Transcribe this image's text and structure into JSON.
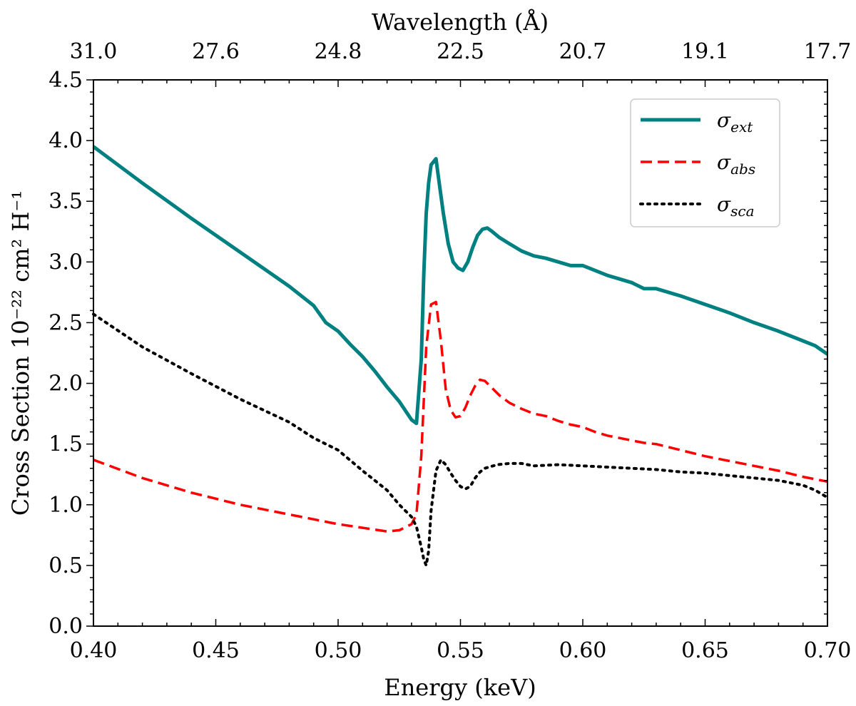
{
  "chart_data": {
    "type": "line",
    "title": "",
    "xlabel": "Energy (keV)",
    "ylabel": "Cross Section 10⁻²² cm² H⁻¹",
    "top_xlabel": "Wavelength (Å)",
    "xlim": [
      0.4,
      0.7
    ],
    "ylim": [
      0.0,
      4.5
    ],
    "xticks": [
      0.4,
      0.45,
      0.5,
      0.55,
      0.6,
      0.65,
      0.7
    ],
    "xtick_labels": [
      "0.40",
      "0.45",
      "0.50",
      "0.55",
      "0.60",
      "0.65",
      "0.70"
    ],
    "yticks": [
      0.0,
      0.5,
      1.0,
      1.5,
      2.0,
      2.5,
      3.0,
      3.5,
      4.0,
      4.5
    ],
    "ytick_labels": [
      "0.0",
      "0.5",
      "1.0",
      "1.5",
      "2.0",
      "2.5",
      "3.0",
      "3.5",
      "4.0",
      "4.5"
    ],
    "top_ticks_energy": [
      0.4,
      0.45,
      0.5,
      0.55,
      0.6,
      0.65,
      0.7
    ],
    "top_tick_labels": [
      "31.0",
      "27.6",
      "24.8",
      "22.5",
      "20.7",
      "19.1",
      "17.7"
    ],
    "legend_position": "top-right",
    "series": [
      {
        "name": "σext",
        "symbol": "σ",
        "subscript": "ext",
        "color": "#008080",
        "style": "solid",
        "x": [
          0.4,
          0.42,
          0.44,
          0.46,
          0.48,
          0.49,
          0.495,
          0.5,
          0.505,
          0.51,
          0.515,
          0.52,
          0.525,
          0.53,
          0.532,
          0.534,
          0.535,
          0.536,
          0.537,
          0.538,
          0.54,
          0.541,
          0.543,
          0.545,
          0.547,
          0.549,
          0.551,
          0.553,
          0.555,
          0.557,
          0.559,
          0.561,
          0.563,
          0.566,
          0.57,
          0.575,
          0.58,
          0.585,
          0.59,
          0.595,
          0.6,
          0.605,
          0.61,
          0.615,
          0.62,
          0.625,
          0.63,
          0.64,
          0.65,
          0.66,
          0.67,
          0.68,
          0.69,
          0.695,
          0.7
        ],
        "values": [
          3.95,
          3.65,
          3.36,
          3.08,
          2.8,
          2.64,
          2.5,
          2.43,
          2.32,
          2.22,
          2.1,
          1.97,
          1.85,
          1.7,
          1.67,
          2.2,
          2.9,
          3.4,
          3.65,
          3.8,
          3.85,
          3.7,
          3.4,
          3.15,
          3.0,
          2.95,
          2.93,
          3.0,
          3.12,
          3.22,
          3.27,
          3.28,
          3.25,
          3.2,
          3.15,
          3.09,
          3.05,
          3.03,
          3.0,
          2.97,
          2.97,
          2.93,
          2.89,
          2.86,
          2.83,
          2.78,
          2.78,
          2.72,
          2.65,
          2.58,
          2.5,
          2.43,
          2.35,
          2.31,
          2.24
        ]
      },
      {
        "name": "σabs",
        "symbol": "σ",
        "subscript": "abs",
        "color": "#ff0000",
        "style": "dashed",
        "x": [
          0.4,
          0.42,
          0.44,
          0.46,
          0.48,
          0.49,
          0.5,
          0.51,
          0.52,
          0.525,
          0.53,
          0.532,
          0.534,
          0.536,
          0.538,
          0.54,
          0.542,
          0.544,
          0.546,
          0.548,
          0.55,
          0.552,
          0.554,
          0.556,
          0.558,
          0.56,
          0.563,
          0.566,
          0.57,
          0.575,
          0.58,
          0.585,
          0.59,
          0.595,
          0.6,
          0.605,
          0.61,
          0.615,
          0.62,
          0.625,
          0.63,
          0.64,
          0.65,
          0.66,
          0.67,
          0.68,
          0.69,
          0.7
        ],
        "values": [
          1.37,
          1.22,
          1.1,
          1.0,
          0.92,
          0.88,
          0.84,
          0.81,
          0.78,
          0.79,
          0.84,
          0.92,
          1.4,
          2.3,
          2.65,
          2.67,
          2.35,
          1.95,
          1.78,
          1.72,
          1.73,
          1.8,
          1.9,
          1.98,
          2.03,
          2.02,
          1.96,
          1.9,
          1.84,
          1.79,
          1.75,
          1.73,
          1.69,
          1.66,
          1.64,
          1.6,
          1.57,
          1.55,
          1.53,
          1.51,
          1.5,
          1.45,
          1.4,
          1.36,
          1.32,
          1.28,
          1.23,
          1.19
        ]
      },
      {
        "name": "σsca",
        "symbol": "σ",
        "subscript": "sca",
        "color": "#000000",
        "style": "dotted",
        "x": [
          0.4,
          0.42,
          0.44,
          0.46,
          0.48,
          0.49,
          0.5,
          0.51,
          0.52,
          0.525,
          0.53,
          0.532,
          0.534,
          0.535,
          0.536,
          0.537,
          0.538,
          0.54,
          0.542,
          0.544,
          0.546,
          0.548,
          0.55,
          0.552,
          0.554,
          0.556,
          0.558,
          0.56,
          0.565,
          0.57,
          0.575,
          0.58,
          0.59,
          0.6,
          0.61,
          0.62,
          0.63,
          0.64,
          0.65,
          0.66,
          0.67,
          0.68,
          0.69,
          0.695,
          0.7
        ],
        "values": [
          2.57,
          2.3,
          2.08,
          1.87,
          1.68,
          1.55,
          1.45,
          1.28,
          1.12,
          1.0,
          0.9,
          0.82,
          0.65,
          0.55,
          0.5,
          0.62,
          0.95,
          1.28,
          1.37,
          1.33,
          1.26,
          1.2,
          1.15,
          1.13,
          1.15,
          1.22,
          1.27,
          1.3,
          1.33,
          1.34,
          1.34,
          1.32,
          1.33,
          1.32,
          1.31,
          1.3,
          1.29,
          1.27,
          1.26,
          1.24,
          1.22,
          1.2,
          1.16,
          1.12,
          1.06
        ]
      }
    ]
  }
}
